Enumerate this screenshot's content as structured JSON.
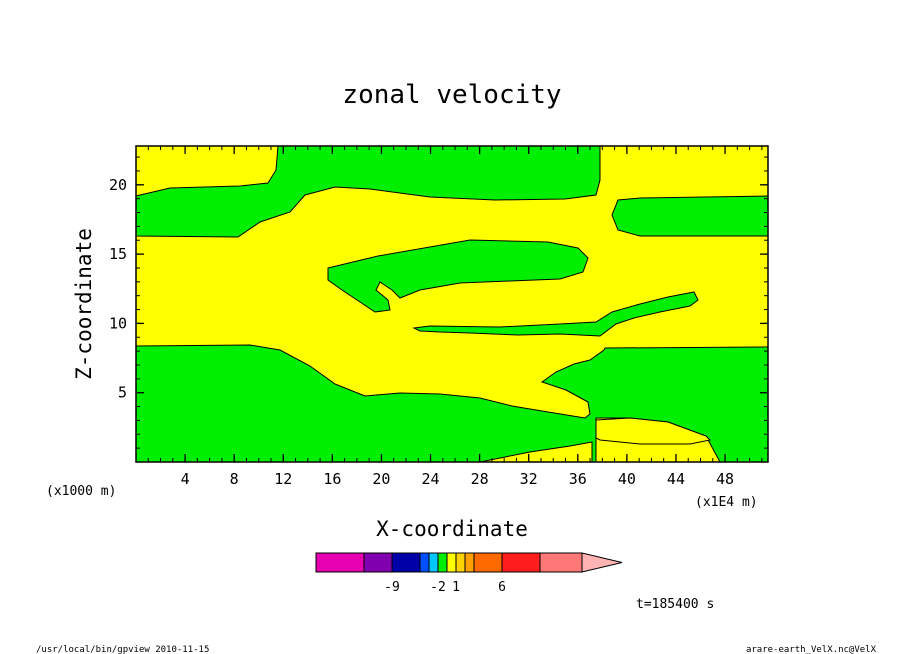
{
  "chart_data": {
    "type": "heatmap",
    "title": "zonal velocity",
    "xlabel": "X-coordinate",
    "ylabel": "Z-coordinate",
    "x_unit_left": "(x1000 m)",
    "x_unit_right": "(x1E4 m)",
    "xlim": [
      0,
      51.5
    ],
    "ylim": [
      0,
      22.8
    ],
    "x_ticks": [
      4,
      8,
      12,
      16,
      20,
      24,
      28,
      32,
      36,
      40,
      44,
      48
    ],
    "y_ticks": [
      5,
      10,
      15,
      20
    ],
    "grid": false,
    "regions": [
      {
        "color": "#ffff00",
        "meaning": "between 1 and 2"
      },
      {
        "color": "#00ee00",
        "meaning": "between 0 and 1"
      }
    ],
    "colorbar": {
      "colors": [
        "#e600b0",
        "#8000b0",
        "#0000a8",
        "#0050ff",
        "#00c8ff",
        "#00ee00",
        "#ffff00",
        "#ffd200",
        "#ffa000",
        "#ff6a00",
        "#ff1e1e",
        "#ff7878",
        "#ffb4b4"
      ],
      "labels": [
        "-9",
        "-2",
        "1",
        "6"
      ]
    },
    "time_label": "t=185400 s"
  },
  "footer": {
    "left": "/usr/local/bin/gpview  2010-11-15",
    "right": "arare-earth_VelX.nc@VelX"
  }
}
